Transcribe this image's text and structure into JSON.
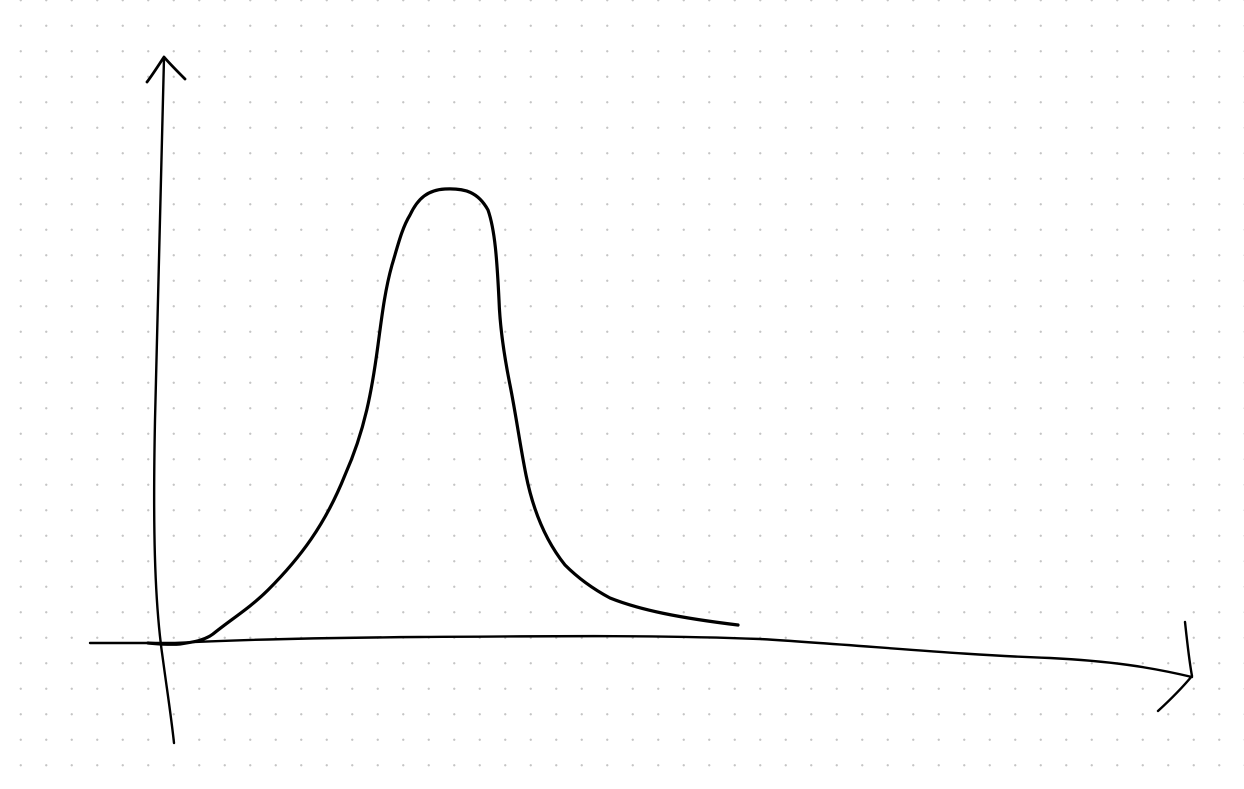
{
  "canvas": {
    "background": "dotted-grid",
    "dot_color": "#c4c4c4",
    "ink_color": "#000000"
  },
  "diagram": {
    "type": "hand-drawn sketch",
    "axes": {
      "y_axis": {
        "direction": "up",
        "arrowhead": true
      },
      "x_axis": {
        "direction": "right",
        "arrowhead": true
      }
    },
    "curve": {
      "shape": "single skewed peak with flat top and long right tail",
      "closed": false
    }
  }
}
